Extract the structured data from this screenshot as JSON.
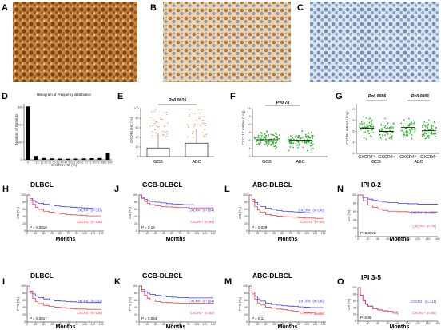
{
  "colors": {
    "km_positive": "#ff3b3b",
    "km_negative": "#3b3bff",
    "scatter_green": "#2fb52f",
    "stain_brown": "#b5732a",
    "stain_blue": "#7f9fc4",
    "box_orange": "#e08a2a"
  },
  "panels": {
    "A": {
      "label": "A"
    },
    "B": {
      "label": "B"
    },
    "C": {
      "label": "C"
    },
    "D": {
      "label": "D",
      "title": "Histogram of Frequency distribution",
      "xlabel": "CXCR4 IHC (%)",
      "ylabel": "Number of Patients"
    },
    "E": {
      "label": "E",
      "pvalue": "P=0.0015",
      "ylabel": "CXCR4 IHC (%)"
    },
    "F": {
      "label": "F",
      "pvalue": "P=0.78",
      "ylabel": "CXCL12 mRNA (Log)"
    },
    "G": {
      "label": "G",
      "pvalue1": "P=0.0086",
      "pvalue2": "P<0.0001",
      "ylabel": "CXCR4 mRNA (Log)"
    },
    "H": {
      "label": "H",
      "title": "DLBCL",
      "neg_label": "CXCR4⁻ (n=333)",
      "pos_label": "CXCR4⁺ (n=135)",
      "pvalue": "P = 0.0016",
      "ylabel": "OS (%)",
      "xlabel": "Months"
    },
    "J": {
      "label": "J",
      "title": "GCB-DLBCL",
      "neg_label": "CXCR4⁻ (n=184)",
      "pos_label": "CXCR4⁺ (n=52)",
      "pvalue": "P = 0.15",
      "ylabel": "OS (%)",
      "xlabel": "Months"
    },
    "L": {
      "label": "L",
      "title": "ABC-DLBCL",
      "neg_label": "CXCR4⁻ (n=146)",
      "pos_label": "CXCR4⁺ (n=80)",
      "pvalue": "P = 0.029",
      "ylabel": "OS (%)",
      "xlabel": "Months"
    },
    "N": {
      "label": "N",
      "title": "IPI 0-2",
      "neg_label": "CXCR4⁻ (n=208)",
      "pos_label": "CXCR4⁺ (n=74)",
      "pvalue": "P=0.0002",
      "ylabel": "OS (%)",
      "xlabel": "Months"
    },
    "I": {
      "label": "I",
      "title": "DLBCL",
      "neg_label": "CXCR4⁻ (n=333)",
      "pos_label": "CXCR4⁺ (n=135)",
      "pvalue": "P = 0.0017",
      "ylabel": "PFS (%)",
      "xlabel": "Months"
    },
    "K": {
      "label": "K",
      "title": "GCB-DLBCL",
      "neg_label": "CXCR4⁻ (n=184)",
      "pos_label": "CXCR4⁺ (n=52)",
      "pvalue": "P = 0.034",
      "ylabel": "PFS (%)",
      "xlabel": "Months"
    },
    "M": {
      "label": "M",
      "title": "ABC-DLBCL",
      "neg_label": "CXCR4⁻ (n=146)",
      "pos_label": "CXCR4⁺ (n=80)",
      "pvalue": "P = 0.11",
      "ylabel": "PFS (%)",
      "xlabel": "Months"
    },
    "O": {
      "label": "O",
      "title": "IPI 3-5",
      "neg_label": "CXCR4⁻ (n=114)",
      "pos_label": "CXCR4⁺ (n=55)",
      "pvalue": "P=0.86",
      "ylabel": "OS (%)",
      "xlabel": "Months"
    }
  },
  "chart_data": [
    {
      "panel": "D",
      "type": "bar",
      "title": "Histogram of Frequency distribution",
      "xlabel": "CXCR4 IHC (%)",
      "ylabel": "Number of Patients",
      "categories": [
        "0",
        "1-10",
        "11-20",
        "21-30",
        "31-40",
        "41-50",
        "51-60",
        "61-70",
        "71-80",
        "81-90",
        "91-100"
      ],
      "values": [
        305,
        22,
        10,
        8,
        7,
        6,
        7,
        8,
        9,
        10,
        38
      ],
      "ylim": [
        0,
        320
      ],
      "yticks": [
        0,
        100,
        200,
        300
      ]
    },
    {
      "panel": "E",
      "type": "bar",
      "ylabel": "CXCR4 IHC (%)",
      "categories": [
        "GCB",
        "ABC"
      ],
      "values": [
        18,
        28
      ],
      "ylim": [
        0,
        100
      ],
      "yticks": [
        0,
        20,
        40,
        60,
        80,
        100
      ],
      "annotation": "P=0.0015"
    },
    {
      "panel": "F",
      "type": "scatter",
      "ylabel": "CXCL12 mRNA (Log)",
      "categories": [
        "GCB",
        "ABC"
      ],
      "means": [
        6.2,
        6.1
      ],
      "ylim": [
        2,
        14
      ],
      "yticks": [
        2,
        4,
        6,
        8,
        10,
        12,
        14
      ],
      "annotation": "P=0.78"
    },
    {
      "panel": "G",
      "type": "scatter",
      "ylabel": "CXCR4 mRNA (Log)",
      "categories": [
        "CXCR4⁺",
        "CXCR4⁻",
        "CXCR4⁺",
        "CXCR4⁻"
      ],
      "groups": [
        "GCB",
        "ABC"
      ],
      "means": [
        6.6,
        6.0,
        6.7,
        6.1
      ],
      "ylim": [
        2,
        11
      ],
      "yticks": [
        2,
        4,
        6,
        8,
        10
      ],
      "annotation": [
        "P=0.0086",
        "P<0.0001"
      ]
    },
    {
      "panel": "H",
      "type": "line",
      "title": "DLBCL",
      "xlabel": "Months",
      "ylabel": "OS (%)",
      "xlim": [
        0,
        140
      ],
      "ylim": [
        0,
        100
      ],
      "series": [
        {
          "name": "CXCR4⁻ (n=333)",
          "x": [
            0,
            5,
            10,
            15,
            20,
            30,
            40,
            50,
            60,
            70,
            80,
            90,
            100,
            110,
            120,
            135
          ],
          "y": [
            100,
            90,
            84,
            80,
            77,
            74,
            72,
            70,
            68,
            67,
            66,
            65,
            64,
            63,
            62,
            62
          ]
        },
        {
          "name": "CXCR4⁺ (n=135)",
          "x": [
            0,
            5,
            10,
            15,
            20,
            30,
            40,
            50,
            60,
            70,
            80,
            90,
            100,
            110,
            120,
            135
          ],
          "y": [
            100,
            85,
            74,
            66,
            60,
            55,
            52,
            50,
            48,
            46,
            45,
            44,
            43,
            42,
            42,
            42
          ]
        }
      ]
    },
    {
      "panel": "J",
      "type": "line",
      "title": "GCB-DLBCL",
      "xlabel": "Months",
      "ylabel": "OS (%)",
      "xlim": [
        0,
        140
      ],
      "ylim": [
        0,
        100
      ],
      "series": [
        {
          "name": "CXCR4⁻ (n=184)",
          "x": [
            0,
            5,
            10,
            15,
            20,
            30,
            40,
            50,
            60,
            70,
            80,
            90,
            100,
            110,
            120,
            135
          ],
          "y": [
            100,
            93,
            88,
            84,
            82,
            80,
            78,
            76,
            75,
            74,
            73,
            73,
            72,
            72,
            72,
            72
          ]
        },
        {
          "name": "CXCR4⁺ (n=52)",
          "x": [
            0,
            5,
            10,
            15,
            20,
            30,
            40,
            50,
            60,
            70,
            80,
            90,
            100,
            110,
            120,
            135
          ],
          "y": [
            100,
            90,
            82,
            77,
            73,
            70,
            68,
            67,
            66,
            65,
            65,
            64,
            64,
            64,
            64,
            64
          ]
        }
      ]
    },
    {
      "panel": "L",
      "type": "line",
      "title": "ABC-DLBCL",
      "xlabel": "Months",
      "ylabel": "OS (%)",
      "xlim": [
        0,
        140
      ],
      "ylim": [
        0,
        100
      ],
      "series": [
        {
          "name": "CXCR4⁻ (n=146)",
          "x": [
            0,
            5,
            10,
            15,
            20,
            30,
            40,
            50,
            60,
            70,
            80,
            90,
            100,
            110,
            120,
            135
          ],
          "y": [
            100,
            88,
            79,
            73,
            68,
            63,
            60,
            57,
            55,
            54,
            53,
            52,
            51,
            50,
            50,
            50
          ]
        },
        {
          "name": "CXCR4⁺ (n=80)",
          "x": [
            0,
            5,
            10,
            15,
            20,
            30,
            40,
            50,
            60,
            70,
            80,
            90,
            100,
            110,
            120,
            135
          ],
          "y": [
            100,
            82,
            68,
            58,
            52,
            46,
            43,
            41,
            40,
            39,
            38,
            37,
            36,
            36,
            35,
            35
          ]
        }
      ]
    },
    {
      "panel": "N",
      "type": "line",
      "title": "IPI 0-2",
      "xlabel": "Months",
      "ylabel": "OS (%)",
      "xlim": [
        0,
        160
      ],
      "ylim": [
        0,
        100
      ],
      "series": [
        {
          "name": "CXCR4⁻ (n=208)",
          "x": [
            0,
            10,
            20,
            30,
            40,
            50,
            60,
            80,
            100,
            120,
            140,
            160
          ],
          "y": [
            100,
            94,
            90,
            87,
            85,
            83,
            82,
            80,
            79,
            78,
            78,
            78
          ]
        },
        {
          "name": "CXCR4⁺ (n=74)",
          "x": [
            0,
            10,
            20,
            30,
            40,
            50,
            60,
            80,
            100,
            120,
            140,
            160
          ],
          "y": [
            100,
            86,
            76,
            70,
            66,
            63,
            61,
            60,
            59,
            59,
            59,
            59
          ]
        }
      ]
    },
    {
      "panel": "I",
      "type": "line",
      "title": "DLBCL",
      "xlabel": "Months",
      "ylabel": "PFS (%)",
      "xlim": [
        0,
        140
      ],
      "ylim": [
        0,
        100
      ],
      "series": [
        {
          "name": "CXCR4⁻ (n=333)",
          "x": [
            0,
            5,
            10,
            15,
            20,
            30,
            40,
            50,
            60,
            70,
            80,
            90,
            100,
            110,
            120,
            135
          ],
          "y": [
            100,
            86,
            78,
            72,
            68,
            64,
            61,
            59,
            58,
            57,
            56,
            55,
            55,
            54,
            54,
            54
          ]
        },
        {
          "name": "CXCR4⁺ (n=135)",
          "x": [
            0,
            5,
            10,
            15,
            20,
            30,
            40,
            50,
            60,
            70,
            80,
            90,
            100,
            110,
            120,
            135
          ],
          "y": [
            100,
            80,
            66,
            57,
            51,
            46,
            43,
            41,
            40,
            38,
            37,
            36,
            36,
            35,
            35,
            35
          ]
        }
      ]
    },
    {
      "panel": "K",
      "type": "line",
      "title": "GCB-DLBCL",
      "xlabel": "Months",
      "ylabel": "PFS (%)",
      "xlim": [
        0,
        140
      ],
      "ylim": [
        0,
        100
      ],
      "series": [
        {
          "name": "CXCR4⁻ (n=184)",
          "x": [
            0,
            5,
            10,
            15,
            20,
            30,
            40,
            50,
            60,
            70,
            80,
            90,
            100,
            110,
            120,
            135
          ],
          "y": [
            100,
            90,
            84,
            80,
            77,
            74,
            72,
            70,
            69,
            68,
            68,
            67,
            67,
            67,
            67,
            67
          ]
        },
        {
          "name": "CXCR4⁺ (n=52)",
          "x": [
            0,
            5,
            10,
            15,
            20,
            30,
            40,
            50,
            60,
            70,
            80,
            90,
            100,
            110,
            120,
            135
          ],
          "y": [
            100,
            85,
            74,
            66,
            61,
            57,
            55,
            54,
            53,
            52,
            52,
            52,
            52,
            52,
            52,
            52
          ]
        }
      ]
    },
    {
      "panel": "M",
      "type": "line",
      "title": "ABC-DLBCL",
      "xlabel": "Months",
      "ylabel": "PFS (%)",
      "xlim": [
        0,
        140
      ],
      "ylim": [
        0,
        100
      ],
      "series": [
        {
          "name": "CXCR4⁻ (n=146)",
          "x": [
            0,
            5,
            10,
            15,
            20,
            30,
            40,
            50,
            60,
            70,
            80,
            90,
            100,
            110,
            120,
            135
          ],
          "y": [
            100,
            83,
            72,
            64,
            58,
            52,
            49,
            47,
            45,
            44,
            43,
            42,
            41,
            40,
            40,
            40
          ]
        },
        {
          "name": "CXCR4⁺ (n=80)",
          "x": [
            0,
            5,
            10,
            15,
            20,
            30,
            40,
            50,
            60,
            70,
            80,
            90,
            100,
            110,
            120,
            135
          ],
          "y": [
            100,
            78,
            63,
            53,
            47,
            41,
            38,
            36,
            34,
            32,
            30,
            28,
            26,
            25,
            22,
            22
          ]
        }
      ]
    },
    {
      "panel": "O",
      "type": "line",
      "title": "IPI 3-5",
      "xlabel": "Months",
      "ylabel": "OS (%)",
      "xlim": [
        0,
        160
      ],
      "ylim": [
        0,
        100
      ],
      "series": [
        {
          "name": "CXCR4⁻ (n=114)",
          "x": [
            0,
            5,
            10,
            15,
            20,
            30,
            40,
            50,
            60,
            70,
            80
          ],
          "y": [
            100,
            78,
            62,
            52,
            45,
            38,
            34,
            31,
            29,
            28,
            27
          ]
        },
        {
          "name": "CXCR4⁺ (n=55)",
          "x": [
            0,
            5,
            10,
            15,
            20,
            30,
            40,
            50,
            60,
            70,
            80
          ],
          "y": [
            100,
            76,
            60,
            50,
            44,
            37,
            33,
            30,
            28,
            24,
            20
          ]
        }
      ]
    }
  ]
}
